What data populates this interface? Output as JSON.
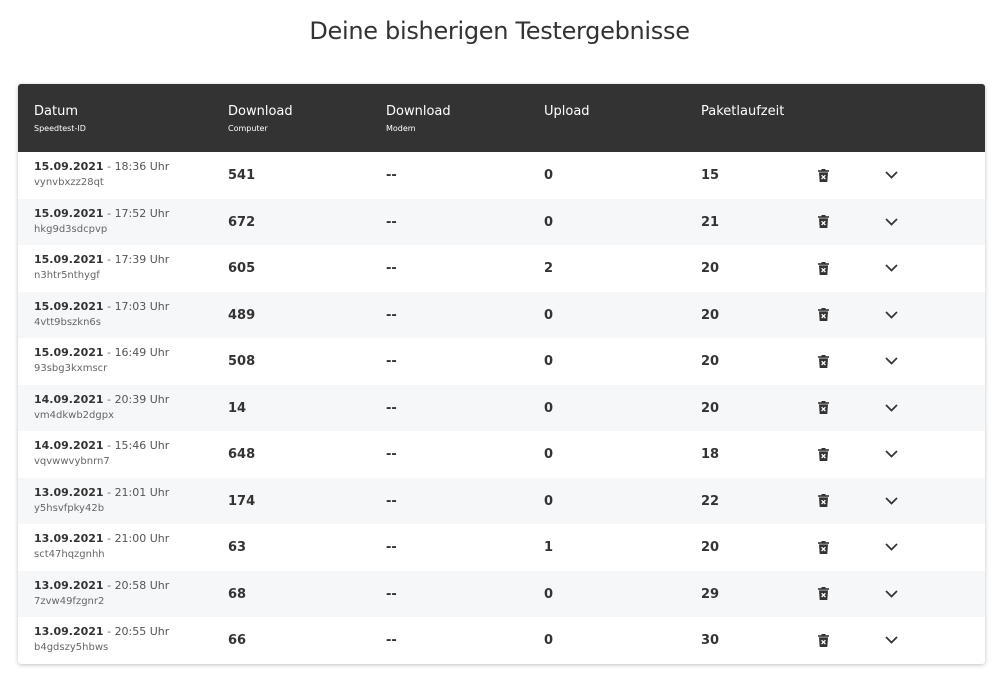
{
  "page": {
    "title": "Deine bisherigen Testergebnisse"
  },
  "table": {
    "headers": {
      "date": {
        "main": "Datum",
        "sub": "Speedtest-ID"
      },
      "download_computer": {
        "main": "Download",
        "sub": "Computer"
      },
      "download_modem": {
        "main": "Download",
        "sub": "Modem"
      },
      "upload": {
        "main": "Upload"
      },
      "latency": {
        "main": "Paketlaufzeit"
      }
    },
    "separator": " - ",
    "rows": [
      {
        "date": "15.09.2021",
        "time": "18:36 Uhr",
        "id": "vynvbxzz28qt",
        "download_computer": "541",
        "download_modem": "--",
        "upload": "0",
        "latency": "15"
      },
      {
        "date": "15.09.2021",
        "time": "17:52 Uhr",
        "id": "hkg9d3sdcpvp",
        "download_computer": "672",
        "download_modem": "--",
        "upload": "0",
        "latency": "21"
      },
      {
        "date": "15.09.2021",
        "time": "17:39 Uhr",
        "id": "n3htr5nthygf",
        "download_computer": "605",
        "download_modem": "--",
        "upload": "2",
        "latency": "20"
      },
      {
        "date": "15.09.2021",
        "time": "17:03 Uhr",
        "id": "4vtt9bszkn6s",
        "download_computer": "489",
        "download_modem": "--",
        "upload": "0",
        "latency": "20"
      },
      {
        "date": "15.09.2021",
        "time": "16:49 Uhr",
        "id": "93sbg3kxmscr",
        "download_computer": "508",
        "download_modem": "--",
        "upload": "0",
        "latency": "20"
      },
      {
        "date": "14.09.2021",
        "time": "20:39 Uhr",
        "id": "vm4dkwb2dgpx",
        "download_computer": "14",
        "download_modem": "--",
        "upload": "0",
        "latency": "20"
      },
      {
        "date": "14.09.2021",
        "time": "15:46 Uhr",
        "id": "vqvwwvybnrn7",
        "download_computer": "648",
        "download_modem": "--",
        "upload": "0",
        "latency": "18"
      },
      {
        "date": "13.09.2021",
        "time": "21:01 Uhr",
        "id": "y5hsvfpky42b",
        "download_computer": "174",
        "download_modem": "--",
        "upload": "0",
        "latency": "22"
      },
      {
        "date": "13.09.2021",
        "time": "21:00 Uhr",
        "id": "sct47hqzgnhh",
        "download_computer": "63",
        "download_modem": "--",
        "upload": "1",
        "latency": "20"
      },
      {
        "date": "13.09.2021",
        "time": "20:58 Uhr",
        "id": "7zvw49fzgnr2",
        "download_computer": "68",
        "download_modem": "--",
        "upload": "0",
        "latency": "29"
      },
      {
        "date": "13.09.2021",
        "time": "20:55 Uhr",
        "id": "b4gdszy5hbws",
        "download_computer": "66",
        "download_modem": "--",
        "upload": "0",
        "latency": "30"
      }
    ]
  },
  "icons": {
    "delete": "trash-icon",
    "expand": "chevron-down-icon"
  },
  "colors": {
    "header_bg": "#333333",
    "row_alt_bg": "#f6f7f9",
    "text": "#333333"
  }
}
